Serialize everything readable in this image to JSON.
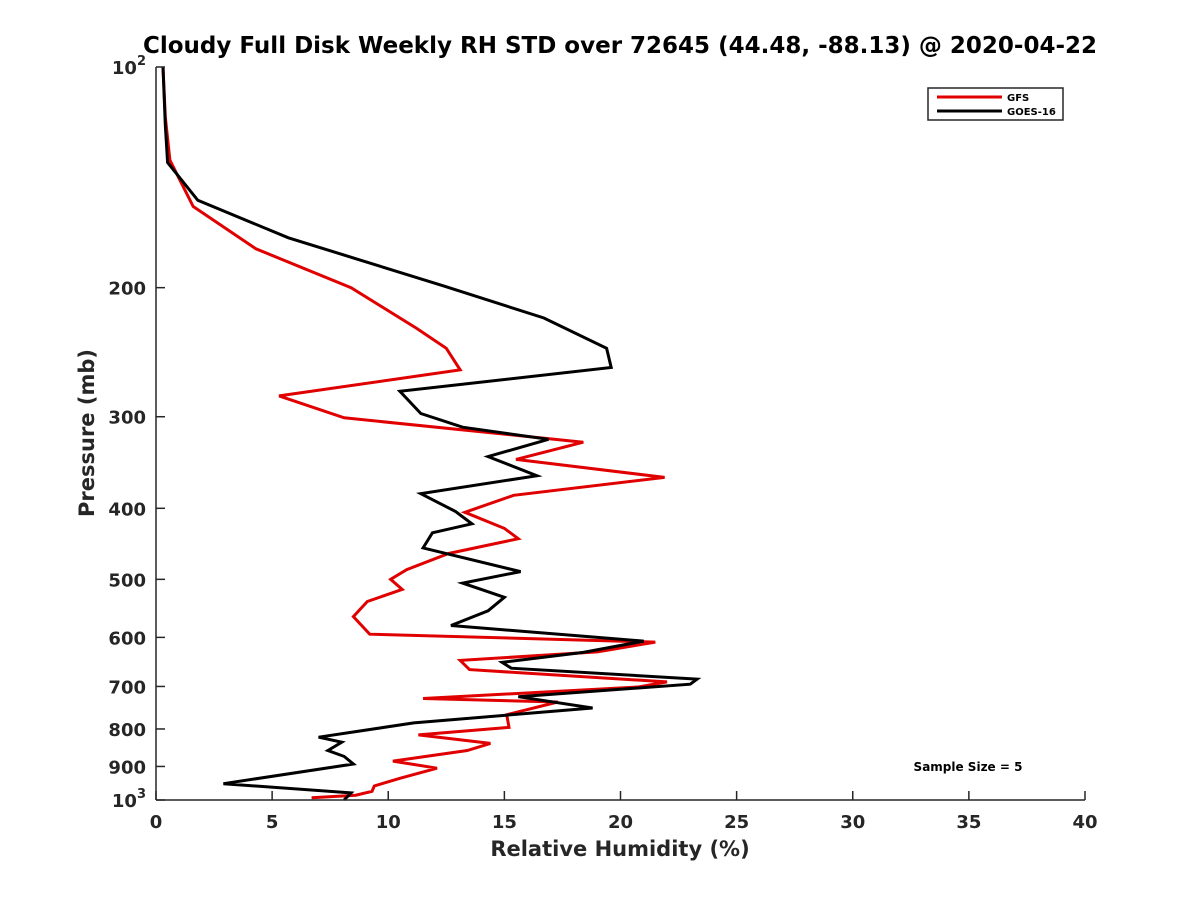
{
  "chart_data": {
    "type": "line",
    "title": "Cloudy Full Disk Weekly RH STD over 72645 (44.48, -88.13) @ 2020-04-22",
    "xlabel": "Relative Humidity (%)",
    "ylabel": "Pressure (mb)",
    "xlim": [
      0,
      40
    ],
    "ylim": [
      100,
      1000
    ],
    "y_scale": "log",
    "y_reversed": true,
    "grid": false,
    "x_ticks": [
      "0",
      "5",
      "10",
      "15",
      "20",
      "25",
      "30",
      "35",
      "40"
    ],
    "y_ticks": [
      {
        "value": 100,
        "base": "10",
        "exp": "2"
      },
      {
        "value": 200,
        "base": "200",
        "exp": ""
      },
      {
        "value": 300,
        "base": "300",
        "exp": ""
      },
      {
        "value": 400,
        "base": "400",
        "exp": ""
      },
      {
        "value": 500,
        "base": "500",
        "exp": ""
      },
      {
        "value": 600,
        "base": "600",
        "exp": ""
      },
      {
        "value": 700,
        "base": "700",
        "exp": ""
      },
      {
        "value": 800,
        "base": "800",
        "exp": ""
      },
      {
        "value": 900,
        "base": "900",
        "exp": ""
      },
      {
        "value": 1000,
        "base": "10",
        "exp": "3"
      }
    ],
    "legend_position": "top-right",
    "annotation": "Sample Size = 5",
    "series": [
      {
        "name": "GFS",
        "color": "#e00000",
        "points": [
          [
            0.3,
            100
          ],
          [
            0.4,
            117
          ],
          [
            0.6,
            134
          ],
          [
            1.6,
            155
          ],
          [
            4.3,
            177
          ],
          [
            8.4,
            200
          ],
          [
            11.2,
            227
          ],
          [
            12.5,
            242
          ],
          [
            13.1,
            259
          ],
          [
            5.3,
            281
          ],
          [
            8.1,
            301
          ],
          [
            18.4,
            325
          ],
          [
            15.5,
            343
          ],
          [
            21.9,
            363
          ],
          [
            15.4,
            384
          ],
          [
            13.3,
            405
          ],
          [
            15.0,
            426
          ],
          [
            15.6,
            440
          ],
          [
            12.6,
            461
          ],
          [
            10.8,
            485
          ],
          [
            10.1,
            500
          ],
          [
            10.6,
            516
          ],
          [
            9.1,
            536
          ],
          [
            8.5,
            562
          ],
          [
            8.9,
            580
          ],
          [
            9.2,
            594
          ],
          [
            21.5,
            609
          ],
          [
            19.0,
            628
          ],
          [
            13.1,
            645
          ],
          [
            13.5,
            664
          ],
          [
            22.0,
            690
          ],
          [
            20.8,
            701
          ],
          [
            11.5,
            727
          ],
          [
            17.3,
            735
          ],
          [
            15.1,
            765
          ],
          [
            15.2,
            796
          ],
          [
            11.3,
            815
          ],
          [
            14.4,
            837
          ],
          [
            13.4,
            856
          ],
          [
            10.2,
            885
          ],
          [
            12.1,
            905
          ],
          [
            10.5,
            934
          ],
          [
            9.4,
            957
          ],
          [
            9.3,
            973
          ],
          [
            8.6,
            985
          ],
          [
            6.7,
            993
          ]
        ]
      },
      {
        "name": "GOES-16",
        "color": "#000000",
        "points": [
          [
            0.3,
            100
          ],
          [
            0.4,
            120
          ],
          [
            0.5,
            135
          ],
          [
            1.8,
            152
          ],
          [
            5.7,
            171
          ],
          [
            8.7,
            183
          ],
          [
            12.4,
            199
          ],
          [
            16.7,
            220
          ],
          [
            19.4,
            242
          ],
          [
            19.6,
            257
          ],
          [
            10.5,
            277
          ],
          [
            11.4,
            297
          ],
          [
            13.2,
            310
          ],
          [
            16.9,
            322
          ],
          [
            14.3,
            340
          ],
          [
            16.4,
            361
          ],
          [
            11.4,
            382
          ],
          [
            12.9,
            404
          ],
          [
            13.6,
            420
          ],
          [
            11.9,
            432
          ],
          [
            11.5,
            453
          ],
          [
            15.7,
            488
          ],
          [
            13.2,
            506
          ],
          [
            15.0,
            529
          ],
          [
            14.3,
            552
          ],
          [
            12.7,
            578
          ],
          [
            21.0,
            607
          ],
          [
            18.4,
            629
          ],
          [
            14.9,
            649
          ],
          [
            15.3,
            661
          ],
          [
            23.3,
            684
          ],
          [
            23.0,
            695
          ],
          [
            15.6,
            723
          ],
          [
            18.8,
            749
          ],
          [
            11.1,
            785
          ],
          [
            7.0,
            821
          ],
          [
            8.0,
            834
          ],
          [
            7.4,
            856
          ],
          [
            8.1,
            872
          ],
          [
            8.5,
            893
          ],
          [
            2.9,
            950
          ],
          [
            8.4,
            978
          ],
          [
            8.1,
            1000
          ]
        ]
      }
    ]
  }
}
